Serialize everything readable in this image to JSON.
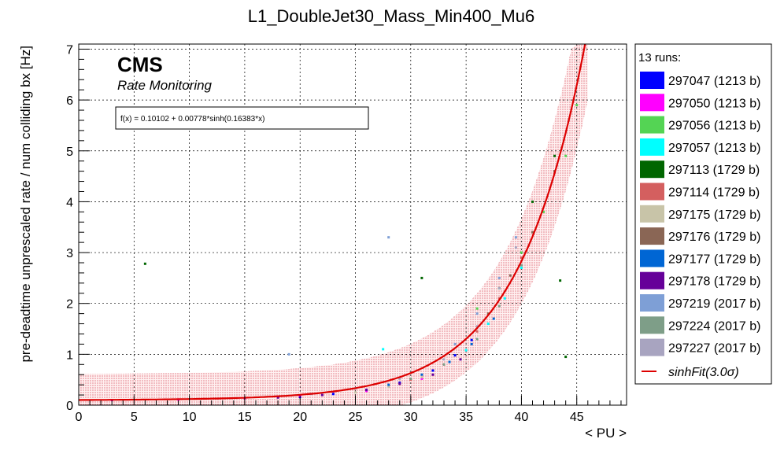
{
  "chart_data": {
    "type": "scatter",
    "title": "L1_DoubleJet30_Mass_Min400_Mu6",
    "xlabel": "< PU >",
    "ylabel": "pre-deadtime unprescaled rate / num colliding bx [Hz]",
    "xlim": [
      0,
      49.5
    ],
    "ylim": [
      0,
      7.1
    ],
    "xticks": [
      0,
      5,
      10,
      15,
      20,
      25,
      30,
      35,
      40,
      45
    ],
    "yticks": [
      0,
      1,
      2,
      3,
      4,
      5,
      6,
      7
    ],
    "grid": true,
    "legend_position": "right",
    "annotations": {
      "experiment": "CMS",
      "subtitle": "Rate Monitoring",
      "fit_formula": "f(x) = 0.10102 + 0.00778*sinh(0.16383*x)"
    },
    "fit": {
      "function": "sinh",
      "a": 0.10102,
      "b": 0.00778,
      "c": 0.16383,
      "band_sigma": 3.0,
      "band_color": "#cc0000"
    },
    "legend": {
      "header": "13 runs:",
      "fit_entry": "sinhFit(3.0σ)"
    },
    "series": [
      {
        "name": "297047 (1213 b)",
        "color": "#0000ff",
        "points": [
          [
            20,
            0.16
          ],
          [
            23,
            0.22
          ],
          [
            26,
            0.3
          ],
          [
            29,
            0.44
          ],
          [
            32,
            0.68
          ],
          [
            34,
            0.98
          ],
          [
            35.5,
            1.28
          ]
        ]
      },
      {
        "name": "297050 (1213 b)",
        "color": "#ff00ff",
        "points": [
          [
            3,
            0.1
          ],
          [
            9,
            0.11
          ],
          [
            15,
            0.14
          ],
          [
            20,
            0.18
          ],
          [
            26,
            0.28
          ],
          [
            31,
            0.52
          ]
        ]
      },
      {
        "name": "297056 (1213 b)",
        "color": "#54d454",
        "points": [
          [
            36,
            1.9
          ],
          [
            38,
            2.3
          ],
          [
            40,
            3.0
          ],
          [
            42,
            3.8
          ],
          [
            44,
            4.9
          ],
          [
            45,
            5.9
          ]
        ]
      },
      {
        "name": "297057 (1213 b)",
        "color": "#00ffff",
        "points": [
          [
            27.5,
            1.1
          ],
          [
            35,
            1.08
          ],
          [
            37,
            1.6
          ],
          [
            38.5,
            2.1
          ],
          [
            40,
            2.7
          ]
        ]
      },
      {
        "name": "297113 (1729 b)",
        "color": "#006600",
        "points": [
          [
            6,
            2.78
          ],
          [
            31,
            2.5
          ],
          [
            41,
            4.0
          ],
          [
            43,
            4.9
          ],
          [
            43.5,
            2.45
          ],
          [
            44,
            0.95
          ]
        ]
      },
      {
        "name": "297114 (1729 b)",
        "color": "#d45f5f",
        "points": [
          [
            30,
            0.5
          ],
          [
            33,
            0.8
          ],
          [
            36,
            1.45
          ],
          [
            38,
            2.1
          ],
          [
            40,
            2.9
          ]
        ]
      },
      {
        "name": "297175 (1729 b)",
        "color": "#c8c4a8",
        "points": [
          [
            25,
            0.25
          ],
          [
            28,
            0.36
          ],
          [
            31,
            0.55
          ]
        ]
      },
      {
        "name": "297176 (1729 b)",
        "color": "#8a6655",
        "points": [
          [
            37,
            1.8
          ],
          [
            39,
            2.55
          ],
          [
            41,
            3.4
          ],
          [
            43,
            4.6
          ]
        ]
      },
      {
        "name": "297177 (1729 b)",
        "color": "#0066d4",
        "points": [
          [
            28,
            0.4
          ],
          [
            31,
            0.6
          ],
          [
            33.5,
            0.85
          ],
          [
            35.5,
            1.2
          ],
          [
            37.5,
            1.7
          ]
        ]
      },
      {
        "name": "297178 (1729 b)",
        "color": "#660099",
        "points": [
          [
            18,
            0.15
          ],
          [
            22,
            0.2
          ],
          [
            26,
            0.3
          ],
          [
            29,
            0.42
          ],
          [
            32,
            0.6
          ],
          [
            34.5,
            0.9
          ]
        ]
      },
      {
        "name": "297219 (2017 b)",
        "color": "#7e9fd6",
        "points": [
          [
            19,
            1.0
          ],
          [
            28,
            3.3
          ],
          [
            34,
            1.2
          ],
          [
            36,
            1.8
          ],
          [
            38,
            2.5
          ],
          [
            39.5,
            3.3
          ]
        ]
      },
      {
        "name": "297224 (2017 b)",
        "color": "#7e9e88",
        "points": [
          [
            30,
            0.52
          ],
          [
            33,
            0.8
          ],
          [
            36,
            1.3
          ],
          [
            38,
            1.95
          ],
          [
            40,
            2.75
          ]
        ]
      },
      {
        "name": "297227 (2017 b)",
        "color": "#a8a4c0",
        "points": [
          [
            21,
            0.22
          ],
          [
            25,
            0.33
          ],
          [
            29,
            0.52
          ],
          [
            33,
            0.9
          ],
          [
            36,
            1.55
          ],
          [
            38,
            2.3
          ],
          [
            39.5,
            3.1
          ]
        ]
      }
    ]
  }
}
